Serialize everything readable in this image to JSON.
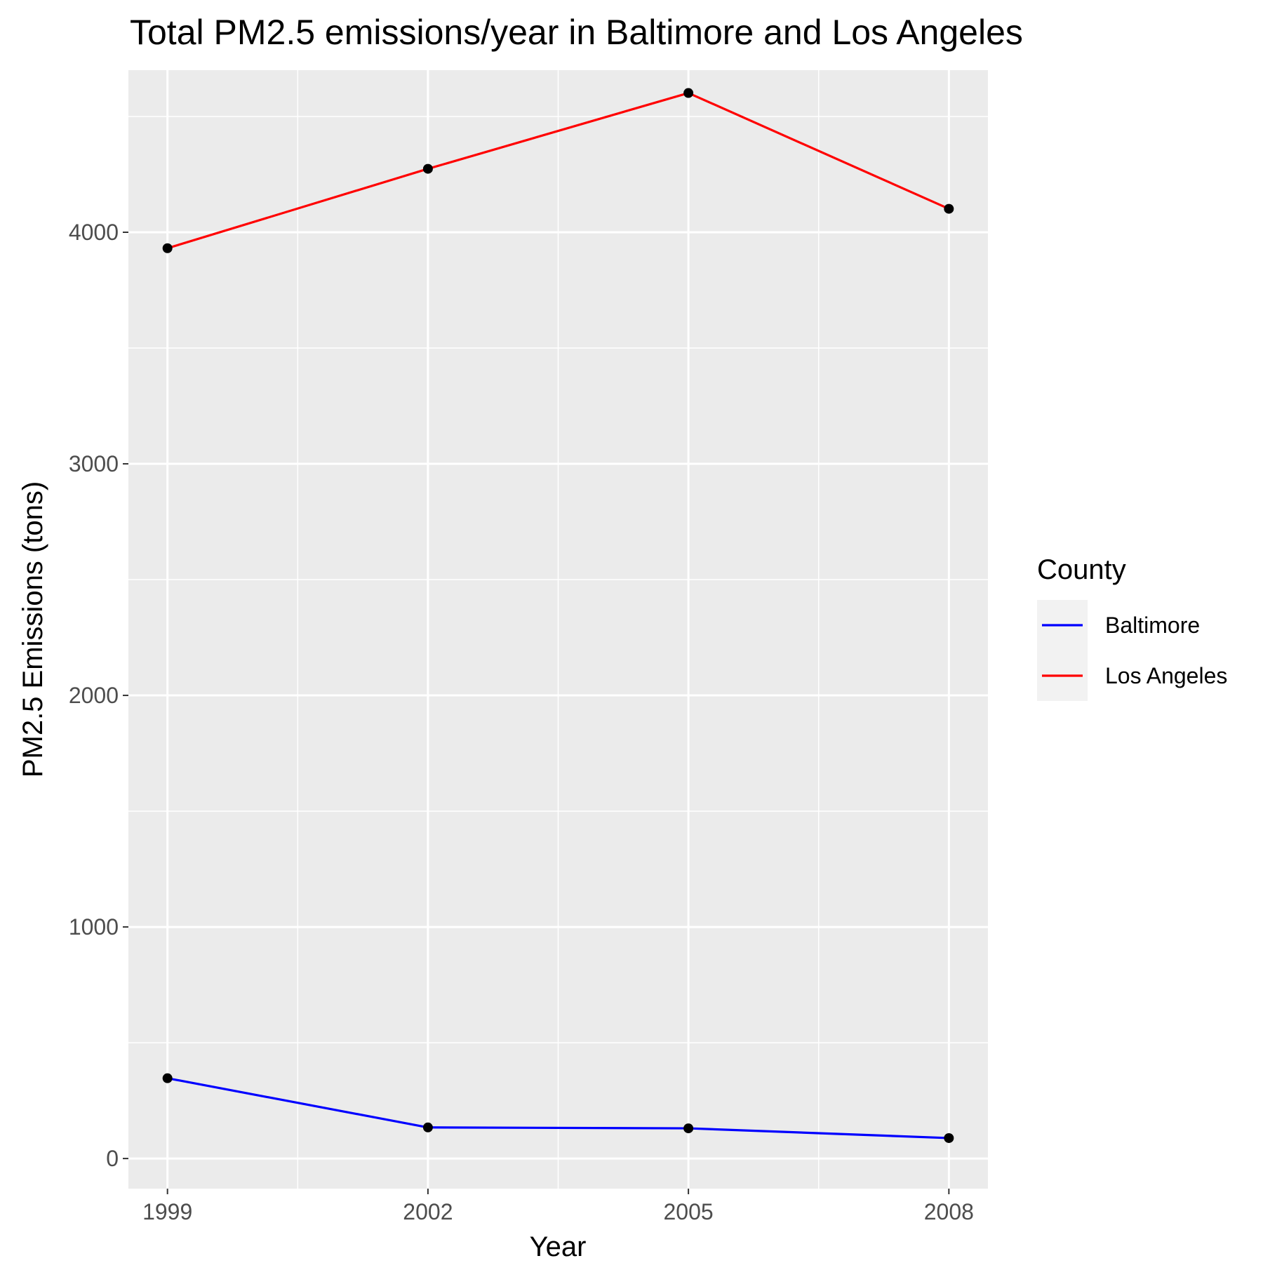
{
  "chart_data": {
    "type": "line",
    "title": "Total PM2.5 emissions/year in Baltimore and Los Angeles",
    "xlabel": "Year",
    "ylabel": "PM2.5 Emissions (tons)",
    "x": [
      1999,
      2002,
      2005,
      2008
    ],
    "x_ticks": [
      "1999",
      "2002",
      "2005",
      "2008"
    ],
    "y_ticks": [
      "0",
      "1000",
      "2000",
      "3000",
      "4000"
    ],
    "xlim": [
      1998.55,
      2008.45
    ],
    "ylim": [
      -130,
      4700
    ],
    "grid": true,
    "legend": {
      "title": "County",
      "position": "right"
    },
    "point_color": "#000000",
    "series": [
      {
        "name": "Baltimore",
        "color": "#0000ff",
        "values": [
          346.8,
          134.3,
          130.4,
          88.3
        ]
      },
      {
        "name": "Los Angeles",
        "color": "#ff0000",
        "values": [
          3931.1,
          4274.0,
          4601.4,
          4101.3
        ]
      }
    ]
  }
}
